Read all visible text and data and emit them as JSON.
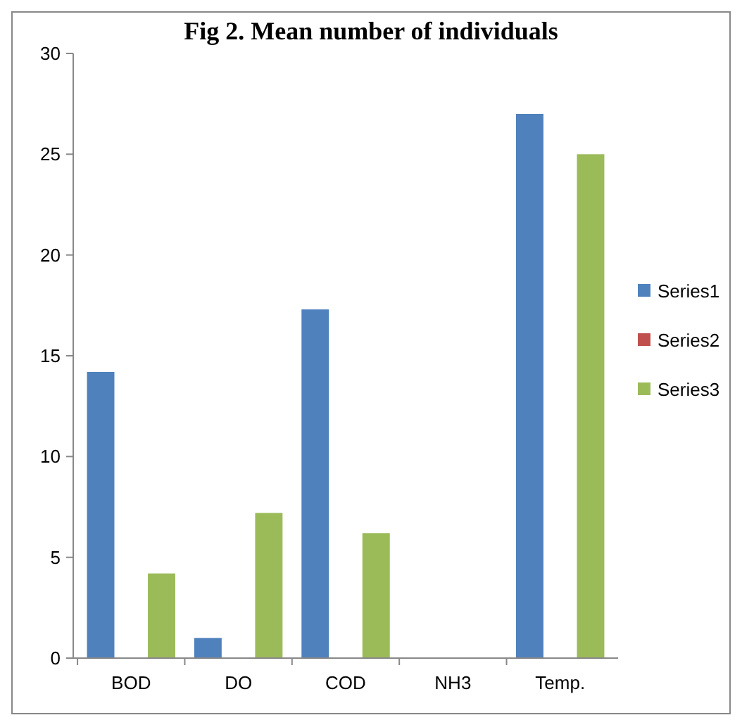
{
  "chart_data": {
    "type": "bar",
    "title": "Fig 2. Mean number of individuals",
    "categories": [
      "BOD",
      "DO",
      "COD",
      "NH3",
      "Temp."
    ],
    "series": [
      {
        "name": "Series1",
        "color": "#4f81bd",
        "values": [
          14.2,
          1.0,
          17.3,
          0,
          27.0
        ]
      },
      {
        "name": "Series2",
        "color": "#c0504d",
        "values": [
          0,
          0,
          0,
          0,
          0
        ]
      },
      {
        "name": "Series3",
        "color": "#9bbb59",
        "values": [
          4.2,
          7.2,
          6.2,
          0,
          25.0
        ]
      }
    ],
    "ylim": [
      0,
      30
    ],
    "yticks": [
      0,
      5,
      10,
      15,
      20,
      25,
      30
    ],
    "grid": false,
    "legend": "right"
  }
}
